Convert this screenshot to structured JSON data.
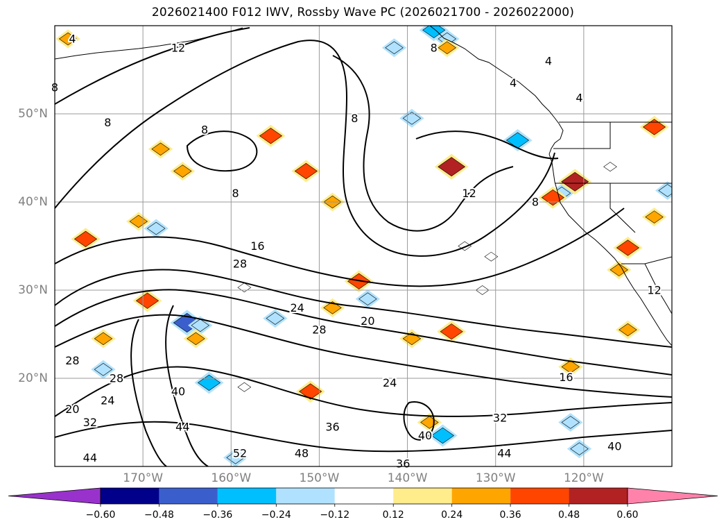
{
  "chart_data": {
    "type": "heatmap",
    "title": "2026021400 F012 IWV, Rossby Wave PC (2026021700 - 2026022000)",
    "map": {
      "lon_range": [
        -180,
        -110
      ],
      "lat_range": [
        10,
        60
      ],
      "lat_ticks": [
        {
          "value": 50,
          "label": "50°N"
        },
        {
          "value": 40,
          "label": "40°N"
        },
        {
          "value": 30,
          "label": "30°N"
        },
        {
          "value": 20,
          "label": "20°N"
        }
      ],
      "lon_ticks": [
        {
          "value": -170,
          "label": "170°W"
        },
        {
          "value": -160,
          "label": "160°W"
        },
        {
          "value": -150,
          "label": "150°W"
        },
        {
          "value": -140,
          "label": "140°W"
        },
        {
          "value": -130,
          "label": "130°W"
        },
        {
          "value": -120,
          "label": "120°W"
        }
      ],
      "grid": true
    },
    "colorbar": {
      "ticks": [
        "−0.60",
        "−0.48",
        "−0.36",
        "−0.24",
        "−0.12",
        "0.12",
        "0.24",
        "0.36",
        "0.48",
        "0.60"
      ],
      "colors": [
        "#9932cc",
        "#00008b",
        "#3a5fcd",
        "#00bfff",
        "#b0e2ff",
        "#ffffff",
        "#ffec8b",
        "#ffa500",
        "#ff4500",
        "#b22222",
        "#ff82ab"
      ],
      "extend": "both"
    },
    "iwv_contour_labels": [
      {
        "text": "4",
        "lon": -178,
        "lat": 58.5
      },
      {
        "text": "12",
        "lon": -166,
        "lat": 57.5
      },
      {
        "text": "8",
        "lon": -180,
        "lat": 53
      },
      {
        "text": "8",
        "lon": -174,
        "lat": 49
      },
      {
        "text": "8",
        "lon": -163,
        "lat": 48.2
      },
      {
        "text": "8",
        "lon": -159.5,
        "lat": 41
      },
      {
        "text": "8",
        "lon": -146,
        "lat": 49.5
      },
      {
        "text": "8",
        "lon": -137,
        "lat": 57.5
      },
      {
        "text": "4",
        "lon": -124,
        "lat": 56
      },
      {
        "text": "4",
        "lon": -128,
        "lat": 53.5
      },
      {
        "text": "12",
        "lon": -133,
        "lat": 41
      },
      {
        "text": "8",
        "lon": -125.5,
        "lat": 40
      },
      {
        "text": "16",
        "lon": -157,
        "lat": 35
      },
      {
        "text": "28",
        "lon": -159,
        "lat": 33
      },
      {
        "text": "24",
        "lon": -152.5,
        "lat": 28
      },
      {
        "text": "28",
        "lon": -150,
        "lat": 25.5
      },
      {
        "text": "20",
        "lon": -144.5,
        "lat": 26.5
      },
      {
        "text": "28",
        "lon": -178,
        "lat": 22
      },
      {
        "text": "28",
        "lon": -173,
        "lat": 20
      },
      {
        "text": "24",
        "lon": -174,
        "lat": 17.5
      },
      {
        "text": "20",
        "lon": -178,
        "lat": 16.5
      },
      {
        "text": "32",
        "lon": -176,
        "lat": 15
      },
      {
        "text": "40",
        "lon": -166,
        "lat": 18.5
      },
      {
        "text": "44",
        "lon": -165.5,
        "lat": 14.5
      },
      {
        "text": "44",
        "lon": -176,
        "lat": 11
      },
      {
        "text": "24",
        "lon": -142,
        "lat": 19.5
      },
      {
        "text": "36",
        "lon": -148.5,
        "lat": 14.5
      },
      {
        "text": "52",
        "lon": -159,
        "lat": 11.5
      },
      {
        "text": "48",
        "lon": -152,
        "lat": 11.5
      },
      {
        "text": "36",
        "lon": -140.5,
        "lat": 10.3
      },
      {
        "text": "40",
        "lon": -138,
        "lat": 13.5
      },
      {
        "text": "44",
        "lon": -129,
        "lat": 11.5
      },
      {
        "text": "32",
        "lon": -129.5,
        "lat": 15.5
      },
      {
        "text": "16",
        "lon": -122,
        "lat": 20.1
      },
      {
        "text": "40",
        "lon": -116.5,
        "lat": 12.3
      },
      {
        "text": "12",
        "lon": -112,
        "lat": 30
      },
      {
        "text": "4",
        "lon": -120.5,
        "lat": 51.8
      }
    ],
    "rossby_pc_anomalies": [
      {
        "lon": -165,
        "lat": 26.3,
        "value": -0.48
      },
      {
        "lon": -163.5,
        "lat": 26,
        "value": -0.24
      },
      {
        "lon": -168.5,
        "lat": 37,
        "value": -0.24
      },
      {
        "lon": -155,
        "lat": 26.8,
        "value": -0.24
      },
      {
        "lon": -162.5,
        "lat": 19.5,
        "value": -0.36
      },
      {
        "lon": -136,
        "lat": 13.5,
        "value": -0.36
      },
      {
        "lon": -141.5,
        "lat": 57.5,
        "value": -0.24
      },
      {
        "lon": -137,
        "lat": 59.5,
        "value": -0.36
      },
      {
        "lon": -158.5,
        "lat": 30.3,
        "value": -0.12
      },
      {
        "lon": -144.5,
        "lat": 29,
        "value": -0.24
      },
      {
        "lon": -127.5,
        "lat": 47,
        "value": -0.36
      },
      {
        "lon": -122.5,
        "lat": 41,
        "value": -0.24
      },
      {
        "lon": -139.5,
        "lat": 49.5,
        "value": -0.24
      },
      {
        "lon": -117,
        "lat": 44,
        "value": -0.12
      },
      {
        "lon": -110.5,
        "lat": 41.3,
        "value": -0.24
      },
      {
        "lon": -135.5,
        "lat": 58.5,
        "value": -0.24
      },
      {
        "lon": -120.5,
        "lat": 12,
        "value": -0.24
      },
      {
        "lon": -121.5,
        "lat": 15,
        "value": -0.24
      },
      {
        "lon": -174.5,
        "lat": 21,
        "value": -0.24
      },
      {
        "lon": -158.5,
        "lat": 19,
        "value": -0.12
      },
      {
        "lon": -159.5,
        "lat": 11,
        "value": -0.24
      },
      {
        "lon": -131.5,
        "lat": 30,
        "value": -0.12
      },
      {
        "lon": -133.5,
        "lat": 35,
        "value": -0.12
      },
      {
        "lon": -130.5,
        "lat": 33.8,
        "value": -0.12
      },
      {
        "lon": -151.5,
        "lat": 43.5,
        "value": 0.36
      },
      {
        "lon": -155.5,
        "lat": 47.5,
        "value": 0.36
      },
      {
        "lon": -121,
        "lat": 42.3,
        "value": 0.48
      },
      {
        "lon": -123.5,
        "lat": 40.5,
        "value": 0.36
      },
      {
        "lon": -135,
        "lat": 44,
        "value": 0.48
      },
      {
        "lon": -176.5,
        "lat": 35.8,
        "value": 0.36
      },
      {
        "lon": -169.5,
        "lat": 28.8,
        "value": 0.36
      },
      {
        "lon": -151,
        "lat": 18.5,
        "value": 0.36
      },
      {
        "lon": -145.5,
        "lat": 31,
        "value": 0.36
      },
      {
        "lon": -148.5,
        "lat": 28,
        "value": 0.24
      },
      {
        "lon": -135,
        "lat": 25.3,
        "value": 0.36
      },
      {
        "lon": -139.5,
        "lat": 24.5,
        "value": 0.24
      },
      {
        "lon": -137.5,
        "lat": 15,
        "value": 0.24
      },
      {
        "lon": -115,
        "lat": 34.8,
        "value": 0.36
      },
      {
        "lon": -148.5,
        "lat": 40,
        "value": 0.24
      },
      {
        "lon": -165.5,
        "lat": 43.5,
        "value": 0.24
      },
      {
        "lon": -168,
        "lat": 46,
        "value": 0.24
      },
      {
        "lon": -178.5,
        "lat": 58.5,
        "value": 0.24
      },
      {
        "lon": -112,
        "lat": 48.5,
        "value": 0.36
      },
      {
        "lon": -112,
        "lat": 38.3,
        "value": 0.24
      },
      {
        "lon": -116,
        "lat": 32.3,
        "value": 0.24
      },
      {
        "lon": -121.5,
        "lat": 21.3,
        "value": 0.24
      },
      {
        "lon": -115,
        "lat": 25.5,
        "value": 0.24
      },
      {
        "lon": -174.5,
        "lat": 24.5,
        "value": 0.24
      },
      {
        "lon": -170.5,
        "lat": 37.8,
        "value": 0.24
      },
      {
        "lon": -164,
        "lat": 24.5,
        "value": 0.24
      },
      {
        "lon": -135.5,
        "lat": 57.5,
        "value": 0.24
      }
    ]
  }
}
